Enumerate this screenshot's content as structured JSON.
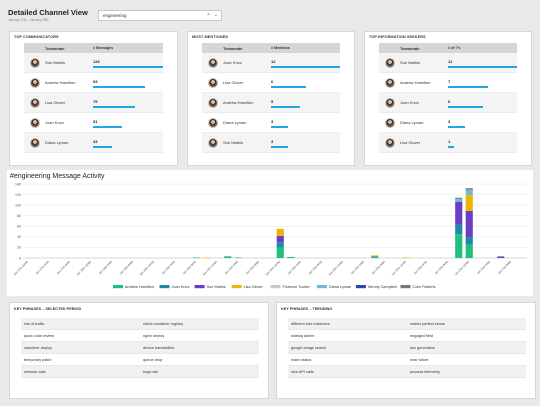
{
  "header": {
    "title": "Detailed Channel View",
    "subtitle": "January 17th – January 20th"
  },
  "channel_select": {
    "value": "engineering",
    "clear": "×",
    "chevron": "⌄"
  },
  "top_communicators": {
    "title": "TOP COMMUNICATORS",
    "col1": "Teammate",
    "col2": "# Messages",
    "rows": [
      {
        "name": "Sue Mathis",
        "value": "126",
        "fraction": 1.0
      },
      {
        "name": "Andrew Hamilton",
        "value": "93",
        "fraction": 0.74
      },
      {
        "name": "Lisa Glover",
        "value": "75",
        "fraction": 0.6
      },
      {
        "name": "Joan Knox",
        "value": "51",
        "fraction": 0.41
      },
      {
        "name": "Diana Lyman",
        "value": "33",
        "fraction": 0.27
      }
    ]
  },
  "most_mentioned": {
    "title": "MOST MENTIONED",
    "col1": "Teammate",
    "col2": "# Mentions",
    "rows": [
      {
        "name": "Joan Knox",
        "value": "12",
        "fraction": 1.0
      },
      {
        "name": "Lisa Glover",
        "value": "6",
        "fraction": 0.5
      },
      {
        "name": "Andrew Hamilton",
        "value": "5",
        "fraction": 0.42
      },
      {
        "name": "Diana Lyman",
        "value": "3",
        "fraction": 0.25
      },
      {
        "name": "Sue Mathis",
        "value": "3",
        "fraction": 0.25
      }
    ]
  },
  "top_seekers": {
    "title": "TOP INFORMATION SEEKERS",
    "col1": "Teammate",
    "col2": "# of ?'s",
    "rows": [
      {
        "name": "Sue Mathis",
        "value": "12",
        "fraction": 1.0
      },
      {
        "name": "Andrew Hamilton",
        "value": "7",
        "fraction": 0.58
      },
      {
        "name": "Joan Knox",
        "value": "6",
        "fraction": 0.5
      },
      {
        "name": "Diana Lyman",
        "value": "3",
        "fraction": 0.25
      },
      {
        "name": "Lisa Glover",
        "value": "1",
        "fraction": 0.08
      }
    ]
  },
  "activity": {
    "title": "#engineering Message Activity"
  },
  "chart_data": {
    "type": "bar",
    "stacked": true,
    "title": "#engineering Message Activity",
    "ylim": [
      0,
      140
    ],
    "yticks": [
      0,
      20,
      40,
      60,
      80,
      100,
      120,
      140
    ],
    "categories": [
      "Jan 17th 12PM",
      "Jan 17th 2PM",
      "Jan 17th 4PM",
      "Jan 17th 6PM",
      "Jan 17th 8PM",
      "Jan 17th 10PM",
      "Jan 18th 12AM",
      "Jan 18th 2AM",
      "Jan 18th 4AM",
      "Jan 18th 6AM",
      "Jan 18th 8AM",
      "Jan 18th 10AM",
      "Jan 18th 12PM",
      "Jan 18th 2PM",
      "Jan 18th 4PM",
      "Jan 18th 6PM",
      "Jan 18th 8PM",
      "Jan 18th 10PM",
      "Jan 19th 12AM",
      "Jan 19th 2AM",
      "Jan 19th 4AM",
      "Jan 19th 6AM",
      "Jan 19th 8AM",
      "Jan 19th 10AM",
      "Jan 19th 12PM",
      "Jan 19th 2PM",
      "Jan 19th 4PM",
      "Jan 19th 6PM",
      "Jan 19th 8PM",
      "Jan 19th 10PM",
      "Jan 20th 12AM",
      "Jan 20th 2AM",
      "Jan 20th 4AM",
      "Jan 20th 6AM",
      "Jan 20th 8AM",
      "Jan 20th 10AM",
      "Jan 20th 12PM",
      "Jan 20th 2PM",
      "Jan 20th 4PM",
      "Jan 20th 6PM",
      "Jan 20th 8PM",
      "Jan 20th 10PM",
      "Jan 21st 12AM",
      "Jan 21st 2AM",
      "Jan 21st 4AM",
      "Jan 21st 6AM",
      "Jan 21st 8AM",
      "Jan 21st 10AM"
    ],
    "series": [
      {
        "name": "Andrew Hamilton",
        "color": "#20c07c",
        "values": [
          0,
          0,
          0,
          0,
          0,
          0,
          0,
          0,
          0,
          0,
          0,
          0,
          0,
          0,
          0,
          0,
          1,
          0,
          0,
          2,
          1,
          0,
          0,
          0,
          20,
          2,
          0,
          0,
          0,
          0,
          0,
          0,
          0,
          2,
          0,
          0,
          0,
          0,
          0,
          0,
          0,
          45,
          25,
          0,
          0,
          0,
          0,
          0
        ]
      },
      {
        "name": "Joan Knox",
        "color": "#1f8aa8",
        "values": [
          0,
          0,
          0,
          0,
          0,
          0,
          0,
          0,
          0,
          0,
          0,
          0,
          0,
          0,
          0,
          0,
          0,
          0,
          0,
          1,
          0,
          0,
          0,
          0,
          10,
          0,
          0,
          0,
          0,
          0,
          0,
          0,
          0,
          1,
          0,
          0,
          0,
          0,
          0,
          0,
          0,
          18,
          14,
          0,
          0,
          0,
          0,
          0
        ]
      },
      {
        "name": "Sue Mathis",
        "color": "#6b3fc4",
        "values": [
          0,
          0,
          0,
          0,
          0,
          0,
          0,
          0,
          0,
          0,
          0,
          0,
          0,
          0,
          0,
          0,
          0,
          0,
          0,
          0,
          0,
          0,
          0,
          0,
          12,
          0,
          0,
          0,
          0,
          0,
          0,
          0,
          0,
          0,
          0,
          0,
          0,
          0,
          0,
          0,
          0,
          43,
          50,
          0,
          0,
          3,
          0,
          0
        ]
      },
      {
        "name": "Lisa Glover",
        "color": "#f0b400",
        "values": [
          0,
          0,
          0,
          0,
          0,
          0,
          0,
          0,
          0,
          0,
          0,
          0,
          0,
          0,
          0,
          0,
          0,
          1,
          0,
          0,
          0,
          0,
          0,
          0,
          13,
          0,
          0,
          0,
          0,
          0,
          0,
          0,
          0,
          2,
          0,
          0,
          1,
          0,
          0,
          0,
          0,
          0,
          30,
          0,
          0,
          0,
          0,
          0
        ]
      },
      {
        "name": "Florence Tucker",
        "color": "#c8c8c8",
        "values": [
          0,
          0,
          0,
          0,
          0,
          0,
          0,
          0,
          0,
          0,
          0,
          0,
          0,
          0,
          0,
          0,
          0,
          0,
          0,
          0,
          0,
          0,
          0,
          0,
          0,
          0,
          0,
          0,
          0,
          0,
          0,
          0,
          0,
          0,
          0,
          0,
          0,
          0,
          0,
          0,
          0,
          0,
          0,
          0,
          0,
          0,
          0,
          0
        ]
      },
      {
        "name": "Diana Lyman",
        "color": "#6fb8d8",
        "values": [
          0,
          0,
          0,
          0,
          0,
          0,
          0,
          0,
          0,
          0,
          0,
          0,
          0,
          0,
          0,
          0,
          0,
          0,
          0,
          0,
          0,
          0,
          0,
          0,
          0,
          0,
          0,
          0,
          0,
          0,
          0,
          0,
          0,
          0,
          0,
          0,
          0,
          0,
          0,
          0,
          0,
          6,
          10,
          0,
          0,
          0,
          0,
          0
        ]
      },
      {
        "name": "Wendy Campbell",
        "color": "#2b4aa6",
        "values": [
          0,
          0,
          0,
          0,
          0,
          0,
          0,
          0,
          0,
          0,
          0,
          0,
          0,
          0,
          0,
          0,
          0,
          0,
          0,
          0,
          0,
          0,
          0,
          0,
          0,
          0,
          0,
          0,
          0,
          0,
          0,
          0,
          0,
          0,
          0,
          0,
          0,
          0,
          0,
          0,
          0,
          0,
          0,
          0,
          0,
          0,
          0,
          0
        ]
      },
      {
        "name": "Colin Roberts",
        "color": "#777777",
        "values": [
          0,
          0,
          0,
          0,
          0,
          0,
          0,
          0,
          0,
          0,
          0,
          0,
          0,
          0,
          0,
          0,
          0,
          0,
          0,
          0,
          0,
          0,
          0,
          0,
          0,
          0,
          0,
          0,
          0,
          0,
          0,
          0,
          0,
          0,
          0,
          0,
          0,
          0,
          0,
          0,
          0,
          2,
          3,
          0,
          0,
          0,
          0,
          0
        ]
      }
    ],
    "legend_position": "bottom"
  },
  "key_phrases_selected": {
    "title": "KEY PHRASES – SELECTED PERIOD",
    "rows": [
      [
        "lots of traffic",
        "check container registry"
      ],
      [
        "quick code review",
        "nginx deploy"
      ],
      [
        "caontiner deploy",
        "device bandwidths"
      ],
      [
        "temporary patch",
        "queue drop"
      ],
      [
        "network calls",
        "huge win"
      ]
    ]
  },
  "key_phrases_trending": {
    "title": "KEY PHRASES – TRENDING",
    "rows": [
      [
        "different size instances",
        "makes perfect sense"
      ],
      [
        "sidekiq admin",
        "engaged field"
      ],
      [
        "google image search",
        "doc generation"
      ],
      [
        "index status",
        "near future"
      ],
      [
        "new API calls",
        "process telemetry"
      ]
    ]
  }
}
